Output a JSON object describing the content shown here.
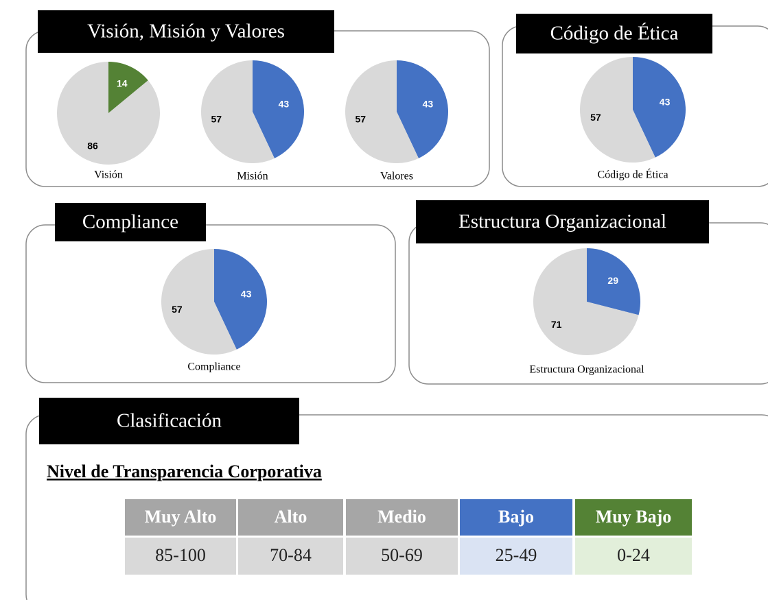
{
  "panels": [
    "Visión, Misión y Valores",
    "Código de Ética",
    "Compliance",
    "Estructura Organizacional",
    "Clasificación"
  ],
  "chart_data": [
    {
      "type": "pie",
      "label": "Visión",
      "values": [
        14,
        86
      ],
      "colors": [
        "#548235",
        "#d9d9d9"
      ]
    },
    {
      "type": "pie",
      "label": "Misión",
      "values": [
        43,
        57
      ],
      "colors": [
        "#4472c4",
        "#d9d9d9"
      ]
    },
    {
      "type": "pie",
      "label": "Valores",
      "values": [
        43,
        57
      ],
      "colors": [
        "#4472c4",
        "#d9d9d9"
      ]
    },
    {
      "type": "pie",
      "label": "Código de Ética",
      "values": [
        43,
        57
      ],
      "colors": [
        "#4472c4",
        "#d9d9d9"
      ]
    },
    {
      "type": "pie",
      "label": "Compliance",
      "values": [
        43,
        57
      ],
      "colors": [
        "#4472c4",
        "#d9d9d9"
      ]
    },
    {
      "type": "pie",
      "label": "Estructura Organizacional",
      "values": [
        29,
        71
      ],
      "colors": [
        "#4472c4",
        "#d9d9d9"
      ]
    }
  ],
  "table": {
    "title": "Nivel de Transparencia Corporativa",
    "header": [
      "Muy Alto",
      "Alto",
      "Medio",
      "Bajo",
      "Muy Bajo"
    ],
    "rows": [
      [
        "85-100",
        "70-84",
        "50-69",
        "25-49",
        "0-24"
      ]
    ]
  }
}
